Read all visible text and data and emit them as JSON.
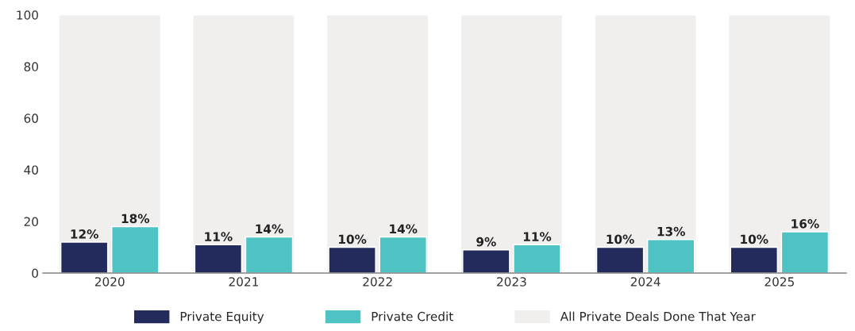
{
  "chart_data": {
    "type": "bar",
    "categories": [
      "2020",
      "2021",
      "2022",
      "2023",
      "2024",
      "2025"
    ],
    "series": [
      {
        "name": "Private Equity",
        "color": "#232b5c",
        "values": [
          12,
          11,
          10,
          9,
          10,
          10
        ],
        "value_labels": [
          "12%",
          "11%",
          "10%",
          "9%",
          "10%",
          "10%"
        ]
      },
      {
        "name": "Private Credit",
        "color": "#4fc3c3",
        "values": [
          18,
          14,
          14,
          11,
          13,
          16
        ],
        "value_labels": [
          "18%",
          "14%",
          "14%",
          "11%",
          "13%",
          "16%"
        ]
      },
      {
        "name": "All Private Deals Done That Year",
        "color": "#f1efee",
        "type": "bar",
        "values": [
          100,
          100,
          100,
          100,
          100,
          100
        ]
      }
    ],
    "ylim": [
      0,
      100
    ],
    "yticks": [
      0,
      20,
      40,
      60,
      80,
      100
    ],
    "grid": false,
    "legend": "bottom"
  }
}
